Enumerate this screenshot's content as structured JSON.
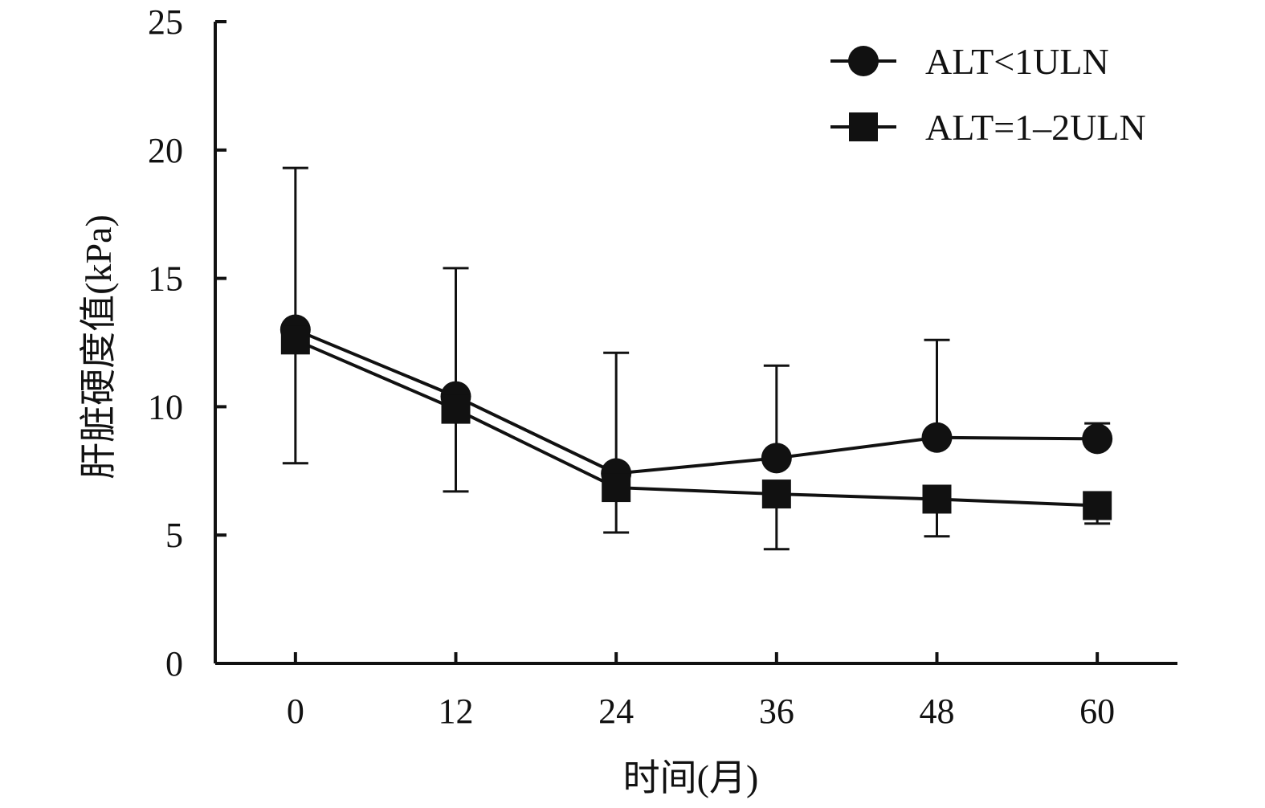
{
  "chart_data": {
    "type": "line",
    "x": [
      0,
      12,
      24,
      36,
      48,
      60
    ],
    "xticks": [
      "0",
      "12",
      "24",
      "36",
      "48",
      "60"
    ],
    "yticks": [
      "0",
      "5",
      "10",
      "15",
      "20",
      "25"
    ],
    "xlim": [
      -6,
      66
    ],
    "ylim": [
      0,
      25
    ],
    "xlabel": "时间(月)",
    "ylabel": "肝脏硬度值(kPa)",
    "grid": false,
    "legend": "top-right",
    "series": [
      {
        "name": "ALT<1ULN",
        "marker": "circle",
        "values": [
          13.0,
          10.4,
          7.4,
          8.0,
          8.8,
          8.75
        ],
        "error_upper": [
          19.3,
          15.4,
          12.1,
          11.6,
          12.6,
          9.35
        ],
        "error_lower": [
          null,
          null,
          null,
          null,
          null,
          null
        ]
      },
      {
        "name": "ALT=1–2ULN",
        "marker": "square",
        "values": [
          12.6,
          9.9,
          6.85,
          6.6,
          6.4,
          6.15
        ],
        "error_upper": [
          null,
          null,
          null,
          null,
          null,
          null
        ],
        "error_lower": [
          7.8,
          6.7,
          5.1,
          4.45,
          4.95,
          5.45
        ]
      }
    ],
    "colors": {
      "line": "#111111"
    }
  }
}
